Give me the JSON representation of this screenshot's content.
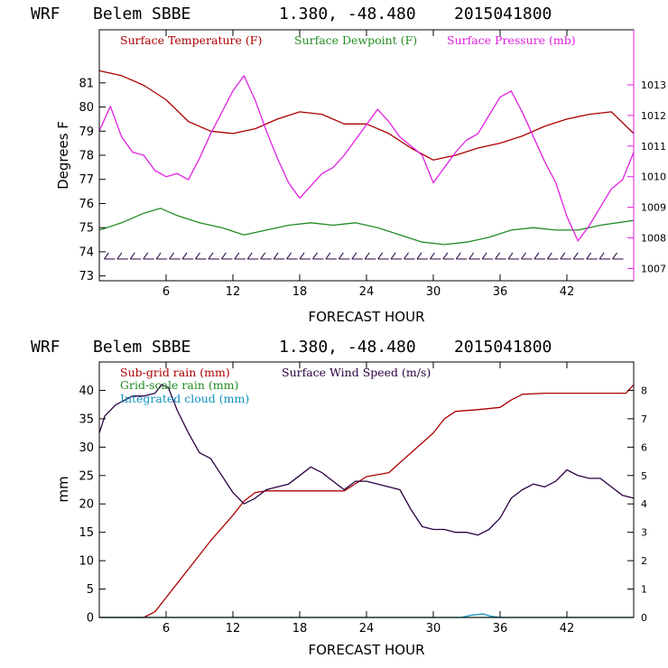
{
  "colors": {
    "red": "#aa0000",
    "green": "#228b22",
    "magenta": "#e020e0",
    "purple": "#2a0040",
    "cyan": "#1090c0"
  },
  "chart_data": [
    {
      "type": "line",
      "header": {
        "model": "WRF",
        "station": "Belem SBBE",
        "coords": "1.380, -48.480",
        "date": "2015041800"
      },
      "xlabel": "FORECAST HOUR",
      "ylabel": "Degrees F",
      "xlim": [
        0,
        48
      ],
      "ylim": [
        72.8,
        83.2
      ],
      "y2lim": [
        1006.6,
        1014.8
      ],
      "xticks": [
        "6",
        "12",
        "18",
        "24",
        "30",
        "36",
        "42"
      ],
      "yticks": [
        "73",
        "74",
        "75",
        "76",
        "77",
        "78",
        "79",
        "80",
        "81"
      ],
      "y2ticks": [
        "1007",
        "1008",
        "1009",
        "1010",
        "1011",
        "1012",
        "1013"
      ],
      "legend": [
        "Surface Temperature (F)",
        "Surface Dewpoint (F)",
        "Surface Pressure (mb)"
      ],
      "series": [
        {
          "name": "Surface Temperature (F)",
          "axis": "left",
          "x": [
            0,
            2,
            4,
            6,
            8,
            10,
            12,
            14,
            16,
            18,
            20,
            22,
            24,
            26,
            28,
            30,
            32,
            34,
            36,
            38,
            40,
            42,
            44,
            46,
            48
          ],
          "y": [
            81.5,
            81.3,
            80.9,
            80.3,
            79.4,
            79.0,
            78.9,
            79.1,
            79.5,
            79.8,
            79.7,
            79.3,
            79.3,
            78.9,
            78.3,
            77.8,
            78.0,
            78.3,
            78.5,
            78.8,
            79.2,
            79.5,
            79.7,
            79.8,
            78.9
          ]
        },
        {
          "name": "Surface Dewpoint (F)",
          "axis": "left",
          "x": [
            0,
            2,
            4,
            5.5,
            7,
            9,
            11,
            13,
            15,
            17,
            19,
            21,
            23,
            25,
            27,
            29,
            31,
            33,
            35,
            37,
            39,
            41,
            43,
            45,
            48
          ],
          "y": [
            74.9,
            75.2,
            75.6,
            75.8,
            75.5,
            75.2,
            75.0,
            74.7,
            74.9,
            75.1,
            75.2,
            75.1,
            75.2,
            75.0,
            74.7,
            74.4,
            74.3,
            74.4,
            74.6,
            74.9,
            75.0,
            74.9,
            74.9,
            75.1,
            75.3
          ]
        },
        {
          "name": "Surface Pressure (mb)",
          "axis": "right",
          "x": [
            0,
            1,
            2,
            3,
            4,
            5,
            6,
            7,
            8,
            9,
            10,
            11,
            12,
            13,
            14,
            15,
            16,
            17,
            18,
            19,
            20,
            21,
            22,
            23,
            24,
            25,
            26,
            27,
            28,
            29,
            30,
            31,
            32,
            33,
            34,
            35,
            36,
            37,
            38,
            39,
            40,
            41,
            42,
            43,
            44,
            45,
            46,
            47,
            48
          ],
          "y": [
            1011.5,
            1012.3,
            1011.3,
            1010.8,
            1010.7,
            1010.2,
            1010.0,
            1010.1,
            1009.9,
            1010.6,
            1011.4,
            1012.1,
            1012.8,
            1013.3,
            1012.5,
            1011.5,
            1010.6,
            1009.8,
            1009.3,
            1009.7,
            1010.1,
            1010.3,
            1010.7,
            1011.2,
            1011.7,
            1012.2,
            1011.8,
            1011.3,
            1011.0,
            1010.7,
            1009.8,
            1010.3,
            1010.8,
            1011.2,
            1011.4,
            1012.0,
            1012.6,
            1012.8,
            1012.1,
            1011.3,
            1010.5,
            1009.8,
            1008.7,
            1007.9,
            1008.4,
            1009.0,
            1009.6,
            1009.9,
            1010.8
          ]
        }
      ],
      "wind_barbs": {
        "y": 73.7,
        "count": 40
      }
    },
    {
      "type": "line",
      "header": {
        "model": "WRF",
        "station": "Belem SBBE",
        "coords": "1.380, -48.480",
        "date": "2015041800"
      },
      "xlabel": "FORECAST HOUR",
      "ylabel": "mm",
      "xlim": [
        0,
        48
      ],
      "ylim": [
        0,
        45
      ],
      "y2lim": [
        0,
        9
      ],
      "xticks": [
        "6",
        "12",
        "18",
        "24",
        "30",
        "36",
        "42"
      ],
      "yticks": [
        "0",
        "5",
        "10",
        "15",
        "20",
        "25",
        "30",
        "35",
        "40"
      ],
      "y2ticks": [
        "0",
        "1",
        "2",
        "3",
        "4",
        "5",
        "6",
        "7",
        "8"
      ],
      "legend": [
        "Sub-grid rain (mm)",
        "Surface Wind Speed (m/s)",
        "Grid-scale rain (mm)",
        "Integrated cloud (mm)"
      ],
      "series": [
        {
          "name": "Sub-grid rain (mm)",
          "axis": "left",
          "x": [
            0,
            4,
            5,
            6,
            8,
            10,
            12,
            13,
            14,
            15,
            18,
            20,
            22,
            24,
            26,
            28,
            30,
            31,
            32,
            34,
            36,
            37,
            38,
            40,
            42,
            44,
            46,
            47.3,
            48
          ],
          "y": [
            0,
            0,
            1.0,
            3.5,
            8.5,
            13.5,
            18.0,
            20.5,
            22.0,
            22.3,
            22.3,
            22.3,
            22.3,
            24.8,
            25.5,
            29.0,
            32.5,
            35.0,
            36.3,
            36.6,
            37.0,
            38.3,
            39.3,
            39.5,
            39.5,
            39.5,
            39.5,
            39.5,
            41.0
          ]
        },
        {
          "name": "Surface Wind Speed (m/s)",
          "axis": "right",
          "x": [
            0,
            0.5,
            1.5,
            3,
            4,
            5,
            5.6,
            6.2,
            7,
            8,
            9,
            10,
            11,
            12,
            13,
            14,
            15,
            16,
            17,
            18,
            19,
            20,
            21,
            22,
            23,
            24,
            25,
            26,
            27,
            28,
            29,
            30,
            31,
            32,
            33,
            34,
            35,
            36,
            37,
            38,
            39,
            40,
            41,
            42,
            43,
            44,
            45,
            46,
            47,
            48
          ],
          "y": [
            6.5,
            7.1,
            7.5,
            7.8,
            7.8,
            7.9,
            8.2,
            8.1,
            7.3,
            6.5,
            5.8,
            5.6,
            5.0,
            4.4,
            4.0,
            4.2,
            4.5,
            4.6,
            4.7,
            5.0,
            5.3,
            5.1,
            4.8,
            4.5,
            4.8,
            4.8,
            4.7,
            4.6,
            4.5,
            3.8,
            3.2,
            3.1,
            3.1,
            3.0,
            3.0,
            2.9,
            3.1,
            3.5,
            4.2,
            4.5,
            4.7,
            4.6,
            4.8,
            5.2,
            5.0,
            4.9,
            4.9,
            4.6,
            4.3,
            4.2
          ]
        },
        {
          "name": "Grid-scale rain (mm)",
          "axis": "left",
          "x": [
            0,
            48
          ],
          "y": [
            0,
            0
          ]
        },
        {
          "name": "Integrated cloud (mm)",
          "axis": "left",
          "x": [
            0,
            32.5,
            33.4,
            34.5,
            35.2,
            36,
            48
          ],
          "y": [
            0,
            0,
            0.4,
            0.6,
            0.2,
            0,
            0
          ]
        }
      ]
    }
  ]
}
